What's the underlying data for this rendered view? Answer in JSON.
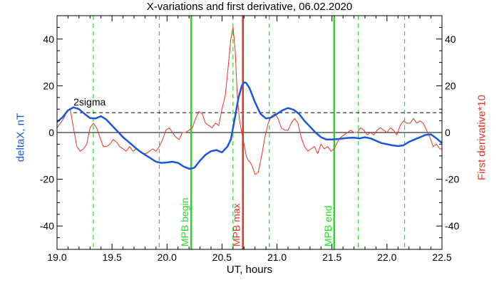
{
  "chart_data": {
    "type": "line",
    "title": "X-variations and first derivative, 06.02.2020",
    "xlabel": "UT, hours",
    "ylabel_left": "deltaX, nT",
    "ylabel_right": "First derivative*10",
    "xlim": [
      19.0,
      22.5
    ],
    "ylim": [
      -50,
      50
    ],
    "x_ticks": [
      "19.0",
      "19.5",
      "20.0",
      "20.5",
      "21.0",
      "21.5",
      "22.0",
      "22.5"
    ],
    "y_ticks": [
      "40",
      "20",
      "0",
      "-20",
      "-40"
    ],
    "colors": {
      "deltaX": "#1a56db",
      "derivative": "#e8331e",
      "mpb": "#22dd22",
      "mpb_max": "#e8331e"
    },
    "threshold": {
      "label": "2sigma",
      "value": 8.5
    },
    "zero_line": 0,
    "vertical_lines": [
      {
        "label": "MPB begin",
        "x": 20.22,
        "style": "solid",
        "color": "#22dd22"
      },
      {
        "label": "MPB max",
        "x": 20.69,
        "style": "solid",
        "color": "#e8331e"
      },
      {
        "label": "MPB end",
        "x": 21.52,
        "style": "solid",
        "color": "#22dd22"
      }
    ],
    "dashed_lines_x": [
      19.33,
      19.93,
      20.6,
      20.93,
      21.74,
      22.16
    ],
    "series": [
      {
        "name": "deltaX, nT",
        "x": [
          19.0,
          19.05,
          19.1,
          19.15,
          19.2,
          19.25,
          19.3,
          19.35,
          19.4,
          19.45,
          19.5,
          19.55,
          19.6,
          19.65,
          19.7,
          19.75,
          19.8,
          19.85,
          19.9,
          19.95,
          20.0,
          20.05,
          20.1,
          20.15,
          20.2,
          20.22,
          20.25,
          20.3,
          20.35,
          20.4,
          20.45,
          20.5,
          20.55,
          20.58,
          20.6,
          20.62,
          20.65,
          20.68,
          20.7,
          20.72,
          20.75,
          20.8,
          20.85,
          20.9,
          20.95,
          21.0,
          21.05,
          21.1,
          21.15,
          21.2,
          21.25,
          21.3,
          21.35,
          21.4,
          21.45,
          21.5,
          21.55,
          21.6,
          21.65,
          21.7,
          21.75,
          21.8,
          21.85,
          21.9,
          21.95,
          22.0,
          22.05,
          22.1,
          22.15,
          22.2,
          22.25,
          22.3,
          22.35,
          22.4,
          22.45,
          22.5
        ],
        "y": [
          4.5,
          6.5,
          9.5,
          10.8,
          10.0,
          8.0,
          6.2,
          6.0,
          7.0,
          5.5,
          3.0,
          0.5,
          -2.0,
          -4.0,
          -6.0,
          -8.0,
          -9.5,
          -11.0,
          -12.5,
          -13.0,
          -12.8,
          -12.5,
          -13.0,
          -14.5,
          -15.5,
          -15.5,
          -15.0,
          -12.0,
          -9.5,
          -8.0,
          -7.5,
          -8.5,
          -6.0,
          -3.0,
          2.0,
          7.0,
          15.0,
          20.0,
          21.5,
          21.2,
          19.0,
          13.0,
          8.0,
          6.0,
          6.5,
          8.0,
          9.5,
          10.5,
          9.8,
          8.0,
          5.0,
          2.5,
          0.0,
          -2.0,
          -3.0,
          -3.0,
          -2.8,
          -2.5,
          -2.3,
          -2.2,
          -2.5,
          -2.0,
          -2.5,
          -3.5,
          -4.5,
          -5.0,
          -5.5,
          -5.8,
          -5.5,
          -4.0,
          -3.0,
          -2.0,
          -1.0,
          -0.8,
          -2.5,
          -4.5
        ]
      },
      {
        "name": "First derivative*10",
        "x": [
          19.0,
          19.03,
          19.06,
          19.09,
          19.12,
          19.15,
          19.18,
          19.21,
          19.24,
          19.27,
          19.3,
          19.33,
          19.36,
          19.39,
          19.42,
          19.45,
          19.48,
          19.51,
          19.54,
          19.57,
          19.6,
          19.63,
          19.66,
          19.69,
          19.72,
          19.75,
          19.78,
          19.81,
          19.84,
          19.87,
          19.9,
          19.93,
          19.96,
          19.99,
          20.02,
          20.05,
          20.08,
          20.11,
          20.14,
          20.17,
          20.2,
          20.23,
          20.26,
          20.29,
          20.32,
          20.35,
          20.38,
          20.41,
          20.44,
          20.47,
          20.5,
          20.53,
          20.56,
          20.58,
          20.6,
          20.62,
          20.64,
          20.66,
          20.68,
          20.7,
          20.72,
          20.74,
          20.76,
          20.78,
          20.8,
          20.83,
          20.86,
          20.89,
          20.92,
          20.95,
          20.98,
          21.01,
          21.04,
          21.07,
          21.1,
          21.13,
          21.16,
          21.19,
          21.22,
          21.25,
          21.28,
          21.31,
          21.34,
          21.37,
          21.4,
          21.43,
          21.46,
          21.49,
          21.52,
          21.55,
          21.58,
          21.61,
          21.64,
          21.67,
          21.7,
          21.73,
          21.76,
          21.79,
          21.82,
          21.85,
          21.88,
          21.91,
          21.94,
          21.97,
          22.0,
          22.03,
          22.06,
          22.09,
          22.12,
          22.15,
          22.18,
          22.21,
          22.24,
          22.27,
          22.3,
          22.33,
          22.36,
          22.39,
          22.42,
          22.45,
          22.48,
          22.5
        ],
        "y": [
          2,
          4,
          6,
          9,
          10,
          2,
          -6,
          -8,
          -7,
          -5,
          2,
          4,
          2,
          -2,
          -6,
          -6,
          -5,
          -3,
          -4,
          -6,
          -7,
          -8,
          -6,
          -8,
          -7,
          -8,
          -9,
          -9,
          -8,
          -7,
          -8,
          -6,
          -3,
          1,
          2,
          0,
          -2,
          -3,
          0,
          0,
          1,
          2,
          6,
          9,
          8,
          4,
          3,
          2,
          4,
          3,
          10,
          16,
          30,
          40,
          45,
          35,
          15,
          5,
          0,
          -5,
          -10,
          -12,
          -13,
          -15,
          -18,
          -17,
          -10,
          -2,
          4,
          7,
          8,
          6,
          2,
          1,
          1,
          4,
          6,
          4,
          -2,
          -6,
          -8,
          -7,
          -6,
          -9,
          -5,
          -7,
          -6,
          -8,
          -7,
          -4,
          -2,
          -1,
          0,
          1,
          0,
          0,
          2,
          1,
          -1,
          0,
          -1,
          1,
          2,
          1,
          0,
          2,
          1,
          -1,
          3,
          5,
          4,
          4,
          6,
          4,
          5,
          4,
          1,
          -2,
          -6,
          -5,
          -7,
          -7
        ]
      }
    ]
  }
}
